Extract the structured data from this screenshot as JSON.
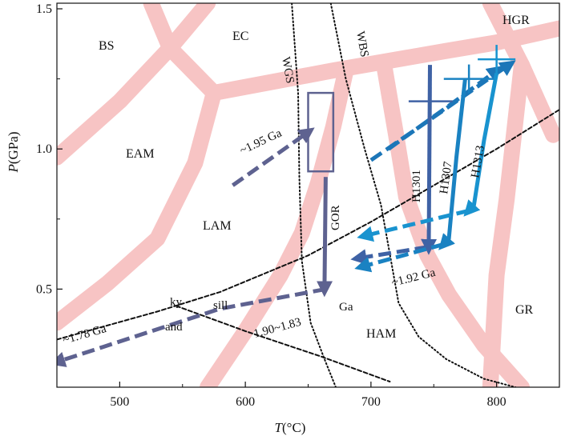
{
  "chart_data": {
    "type": "line",
    "title": "",
    "xlabel_italic": "T",
    "xlabel_unit": "(°C)",
    "ylabel_italic": "P",
    "ylabel_unit": "(GPa)",
    "xlim": [
      450,
      850
    ],
    "ylim": [
      0.15,
      1.52
    ],
    "x_ticks": [
      500,
      600,
      700,
      800
    ],
    "y_ticks": [
      0.5,
      1.0,
      1.5
    ],
    "x_tick_labels": [
      "500",
      "600",
      "700",
      "800"
    ],
    "y_tick_labels": [
      "0.5",
      "1.0",
      "1.5"
    ],
    "grid": false,
    "facies_boundaries": [
      {
        "points": [
          [
            450,
            0.97
          ],
          [
            500,
            1.17
          ],
          [
            540,
            1.36
          ],
          [
            570,
            1.52
          ]
        ]
      },
      {
        "points": [
          [
            525,
            1.52
          ],
          [
            540,
            1.36
          ]
        ]
      },
      {
        "points": [
          [
            540,
            1.36
          ],
          [
            575,
            1.2
          ]
        ]
      },
      {
        "points": [
          [
            575,
            1.2
          ],
          [
            670,
            1.28
          ],
          [
            760,
            1.35
          ],
          [
            800,
            1.38
          ],
          [
            850,
            1.43
          ]
        ]
      },
      {
        "points": [
          [
            575,
            1.2
          ],
          [
            560,
            0.95
          ],
          [
            530,
            0.68
          ],
          [
            490,
            0.52
          ],
          [
            450,
            0.38
          ]
        ]
      },
      {
        "points": [
          [
            680,
            1.28
          ],
          [
            670,
            1.08
          ],
          [
            658,
            0.88
          ],
          [
            645,
            0.7
          ],
          [
            628,
            0.55
          ],
          [
            600,
            0.35
          ],
          [
            570,
            0.15
          ]
        ]
      },
      {
        "points": [
          [
            710,
            1.31
          ],
          [
            720,
            1.05
          ],
          [
            728,
            0.83
          ],
          [
            745,
            0.62
          ],
          [
            762,
            0.48
          ],
          [
            790,
            0.3
          ],
          [
            820,
            0.15
          ]
        ]
      },
      {
        "points": [
          [
            795,
            1.52
          ],
          [
            820,
            1.3
          ],
          [
            845,
            1.05
          ]
        ]
      },
      {
        "points": [
          [
            820,
            1.3
          ],
          [
            808,
            0.82
          ],
          [
            800,
            0.55
          ],
          [
            795,
            0.15
          ]
        ]
      }
    ],
    "reference_lines": [
      {
        "name": "WGS",
        "style": "dotted",
        "points": [
          [
            637,
            1.52
          ],
          [
            642,
            1.2
          ],
          [
            643,
            0.9
          ],
          [
            645,
            0.6
          ],
          [
            652,
            0.38
          ],
          [
            663,
            0.25
          ],
          [
            672,
            0.15
          ]
        ]
      },
      {
        "name": "WBS",
        "style": "dotted",
        "points": [
          [
            668,
            1.52
          ],
          [
            680,
            1.25
          ],
          [
            695,
            1.0
          ],
          [
            708,
            0.8
          ],
          [
            716,
            0.6
          ],
          [
            722,
            0.45
          ],
          [
            738,
            0.33
          ],
          [
            760,
            0.25
          ],
          [
            790,
            0.18
          ],
          [
            815,
            0.15
          ]
        ]
      },
      {
        "name": "",
        "style": "dashed",
        "points": [
          [
            450,
            0.32
          ],
          [
            530,
            0.42
          ],
          [
            580,
            0.49
          ],
          [
            650,
            0.62
          ],
          [
            700,
            0.74
          ],
          [
            750,
            0.87
          ],
          [
            800,
            1.0
          ],
          [
            850,
            1.14
          ]
        ]
      },
      {
        "name": "",
        "style": "dashed",
        "points": [
          [
            545,
            0.44
          ],
          [
            600,
            0.35
          ],
          [
            660,
            0.26
          ],
          [
            715,
            0.17
          ]
        ]
      }
    ],
    "series": [
      {
        "color": "#5e6290",
        "style": "dashed",
        "points": [
          [
            590,
            0.87
          ],
          [
            650,
            1.06
          ]
        ]
      },
      {
        "color": "#5e6290",
        "style": "solid",
        "points": [
          [
            664,
            0.9
          ],
          [
            663,
            0.5
          ]
        ]
      },
      {
        "color": "#5e6290",
        "style": "dashed",
        "points": [
          [
            664,
            0.5
          ],
          [
            580,
            0.43
          ],
          [
            450,
            0.24
          ]
        ]
      },
      {
        "color": "#1c76b8",
        "style": "dashed",
        "points": [
          [
            700,
            0.96
          ],
          [
            752,
            1.12
          ],
          [
            800,
            1.27
          ],
          [
            810,
            1.3
          ]
        ]
      },
      {
        "color": "#1c76b8",
        "style": "dashed",
        "points": [
          [
            714,
            1.0
          ],
          [
            770,
            1.18
          ],
          [
            800,
            1.28
          ]
        ]
      },
      {
        "color": "#3f62a5",
        "style": "solid",
        "points": [
          [
            747,
            1.3
          ],
          [
            746,
            0.65
          ]
        ]
      },
      {
        "color": "#3f62a5",
        "style": "dashed",
        "points": [
          [
            745,
            0.65
          ],
          [
            690,
            0.61
          ]
        ]
      },
      {
        "color": "#1a82c2",
        "style": "solid",
        "points": [
          [
            775,
            1.25
          ],
          [
            768,
            0.97
          ],
          [
            762,
            0.68
          ],
          [
            758,
            0.66
          ]
        ]
      },
      {
        "color": "#1a82c2",
        "style": "dashed",
        "points": [
          [
            758,
            0.66
          ],
          [
            693,
            0.58
          ]
        ]
      },
      {
        "color": "#1993cf",
        "style": "solid",
        "points": [
          [
            800,
            1.27
          ],
          [
            790,
            1.03
          ],
          [
            782,
            0.8
          ],
          [
            778,
            0.78
          ]
        ]
      },
      {
        "color": "#1993cf",
        "style": "dashed",
        "points": [
          [
            778,
            0.78
          ],
          [
            695,
            0.69
          ]
        ]
      }
    ],
    "crosses": [
      {
        "t": [
          730,
          765
        ],
        "p": 1.17,
        "color": "#3f62a5"
      },
      {
        "t": [
          758,
          798
        ],
        "p": 1.25,
        "color": "#1a82c2"
      },
      {
        "t": [
          785,
          815
        ],
        "p": 1.32,
        "color": "#1993cf"
      }
    ],
    "box": {
      "t": [
        650,
        670
      ],
      "p": [
        0.92,
        1.2
      ],
      "color": "#5e6290"
    },
    "region_labels": [
      "BS",
      "EC",
      "HGR",
      "EAM",
      "LAM",
      "HAM",
      "GR"
    ],
    "line_labels": [
      "WGS",
      "WBS",
      "GOR",
      "H1301",
      "H1307",
      "H1313"
    ],
    "age_labels": [
      "~1.95 Ga",
      "~1.92 Ga",
      "~1.78 Ga",
      "1.90~1.83",
      "Ga"
    ],
    "reaction_labels": [
      "ky",
      "and",
      "sill"
    ]
  }
}
